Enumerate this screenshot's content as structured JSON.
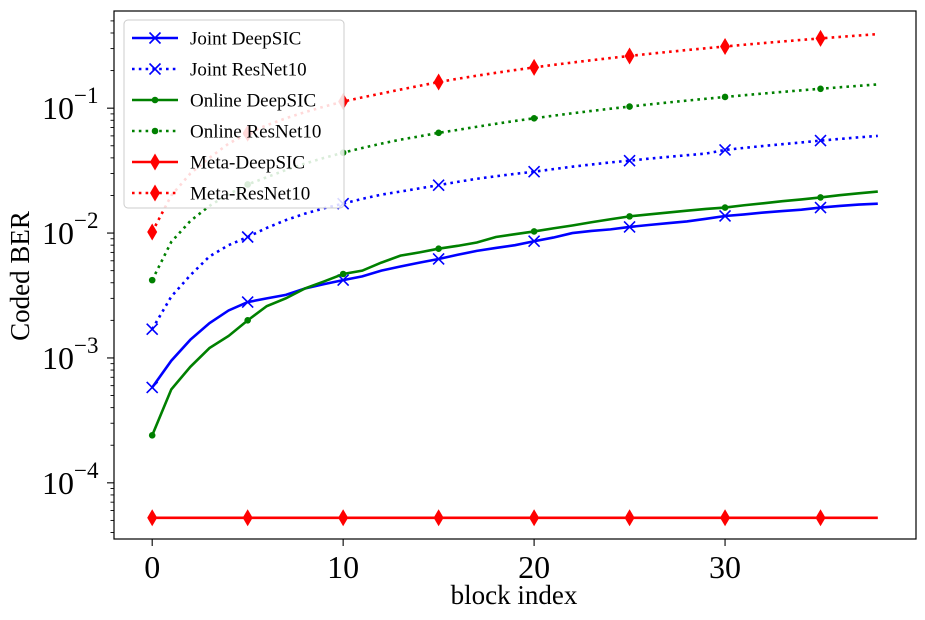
{
  "chart_data": {
    "type": "line",
    "title": "",
    "xlabel": "block index",
    "ylabel": "Coded BER",
    "yscale": "log",
    "xlim": [
      -2,
      40
    ],
    "ylim": [
      3.55e-05,
      0.6
    ],
    "x_ticks": [
      0,
      10,
      20,
      30
    ],
    "x_tick_labels": [
      "0",
      "10",
      "20",
      "30"
    ],
    "y_ticks": [
      0.0001,
      0.001,
      0.01,
      0.1
    ],
    "y_tick_labels": [
      {
        "base": "10",
        "exp": "−4"
      },
      {
        "base": "10",
        "exp": "−3"
      },
      {
        "base": "10",
        "exp": "−2"
      },
      {
        "base": "10",
        "exp": "−1"
      }
    ],
    "grid": false,
    "legend_position": "top-left",
    "x": [
      0,
      1,
      2,
      3,
      4,
      5,
      6,
      7,
      8,
      9,
      10,
      11,
      12,
      13,
      14,
      15,
      16,
      17,
      18,
      19,
      20,
      21,
      22,
      23,
      24,
      25,
      26,
      27,
      28,
      29,
      30,
      31,
      32,
      33,
      34,
      35,
      36,
      37,
      38
    ],
    "series": [
      {
        "name": "Joint DeepSIC",
        "color": "#0000ff",
        "linestyle": "solid",
        "marker": "x",
        "values": [
          0.00058,
          0.00095,
          0.0014,
          0.0019,
          0.0024,
          0.0028,
          0.003,
          0.0032,
          0.0036,
          0.0039,
          0.0042,
          0.0045,
          0.005,
          0.0054,
          0.0058,
          0.0062,
          0.0067,
          0.0072,
          0.0076,
          0.008,
          0.0086,
          0.0092,
          0.01,
          0.0104,
          0.0107,
          0.0112,
          0.0116,
          0.012,
          0.0124,
          0.013,
          0.0137,
          0.0141,
          0.0146,
          0.015,
          0.0154,
          0.016,
          0.0165,
          0.0169,
          0.0172
        ]
      },
      {
        "name": "Joint ResNet10",
        "color": "#0000ff",
        "linestyle": "dotted",
        "marker": "x",
        "values": [
          0.0017,
          0.0031,
          0.0046,
          0.0065,
          0.008,
          0.0093,
          0.011,
          0.0127,
          0.0143,
          0.0158,
          0.0172,
          0.0188,
          0.0203,
          0.0215,
          0.0228,
          0.0242,
          0.0257,
          0.0272,
          0.0285,
          0.0298,
          0.031,
          0.0325,
          0.034,
          0.0354,
          0.0368,
          0.038,
          0.0394,
          0.0407,
          0.042,
          0.0433,
          0.0463,
          0.0481,
          0.0498,
          0.0515,
          0.0532,
          0.055,
          0.0567,
          0.0584,
          0.06
        ]
      },
      {
        "name": "Online DeepSIC",
        "color": "#008000",
        "linestyle": "solid",
        "marker": "dot",
        "values": [
          0.00024,
          0.00056,
          0.00085,
          0.0012,
          0.0015,
          0.002,
          0.0026,
          0.003,
          0.0036,
          0.0041,
          0.0047,
          0.005,
          0.0058,
          0.0066,
          0.007,
          0.0075,
          0.0079,
          0.0084,
          0.0093,
          0.0098,
          0.0103,
          0.0109,
          0.0115,
          0.0122,
          0.0129,
          0.0136,
          0.0141,
          0.0146,
          0.0151,
          0.0156,
          0.016,
          0.0167,
          0.0173,
          0.018,
          0.0186,
          0.0193,
          0.0201,
          0.0208,
          0.0215
        ]
      },
      {
        "name": "Online ResNet10",
        "color": "#008000",
        "linestyle": "dotted",
        "marker": "dot",
        "values": [
          0.0042,
          0.0085,
          0.0125,
          0.0165,
          0.0205,
          0.0245,
          0.028,
          0.032,
          0.036,
          0.04,
          0.044,
          0.048,
          0.052,
          0.056,
          0.0595,
          0.0635,
          0.067,
          0.071,
          0.075,
          0.079,
          0.083,
          0.087,
          0.091,
          0.095,
          0.099,
          0.103,
          0.107,
          0.111,
          0.115,
          0.119,
          0.123,
          0.127,
          0.131,
          0.135,
          0.139,
          0.143,
          0.147,
          0.151,
          0.155
        ]
      },
      {
        "name": "Meta-DeepSIC",
        "color": "#ff0000",
        "linestyle": "solid",
        "marker": "diamond",
        "values": [
          5.25e-05,
          5.25e-05,
          5.25e-05,
          5.25e-05,
          5.25e-05,
          5.25e-05,
          5.25e-05,
          5.25e-05,
          5.25e-05,
          5.25e-05,
          5.25e-05,
          5.25e-05,
          5.25e-05,
          5.25e-05,
          5.25e-05,
          5.25e-05,
          5.25e-05,
          5.25e-05,
          5.25e-05,
          5.25e-05,
          5.25e-05,
          5.25e-05,
          5.25e-05,
          5.25e-05,
          5.25e-05,
          5.25e-05,
          5.25e-05,
          5.25e-05,
          5.25e-05,
          5.25e-05,
          5.25e-05,
          5.25e-05,
          5.25e-05,
          5.25e-05,
          5.25e-05,
          5.25e-05,
          5.25e-05,
          5.25e-05,
          5.25e-05
        ]
      },
      {
        "name": "Meta-ResNet10",
        "color": "#ff0000",
        "linestyle": "dotted",
        "marker": "diamond",
        "values": [
          0.0102,
          0.02,
          0.03,
          0.04,
          0.052,
          0.063,
          0.073,
          0.083,
          0.093,
          0.103,
          0.113,
          0.122,
          0.131,
          0.141,
          0.151,
          0.162,
          0.172,
          0.182,
          0.192,
          0.202,
          0.212,
          0.222,
          0.232,
          0.242,
          0.252,
          0.262,
          0.272,
          0.282,
          0.292,
          0.302,
          0.312,
          0.322,
          0.332,
          0.342,
          0.352,
          0.362,
          0.372,
          0.382,
          0.392
        ]
      }
    ]
  }
}
